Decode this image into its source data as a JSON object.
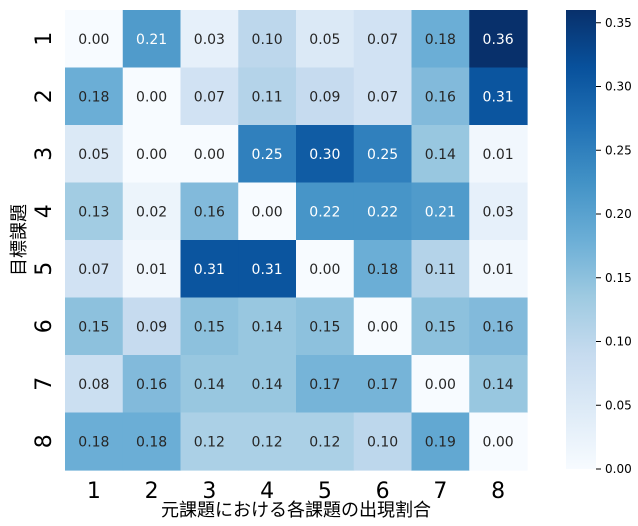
{
  "chart_data": {
    "type": "heatmap",
    "xlabel": "元課題における各課題の出現割合",
    "ylabel": "目標課題",
    "x_categories": [
      "1",
      "2",
      "3",
      "4",
      "5",
      "6",
      "7",
      "8"
    ],
    "y_categories": [
      "1",
      "2",
      "3",
      "4",
      "5",
      "6",
      "7",
      "8"
    ],
    "values": [
      [
        0.0,
        0.21,
        0.03,
        0.1,
        0.05,
        0.07,
        0.18,
        0.36
      ],
      [
        0.18,
        0.0,
        0.07,
        0.11,
        0.09,
        0.07,
        0.16,
        0.31
      ],
      [
        0.05,
        0.0,
        0.0,
        0.25,
        0.3,
        0.25,
        0.14,
        0.01
      ],
      [
        0.13,
        0.02,
        0.16,
        0.0,
        0.22,
        0.22,
        0.21,
        0.03
      ],
      [
        0.07,
        0.01,
        0.31,
        0.31,
        0.0,
        0.18,
        0.11,
        0.01
      ],
      [
        0.15,
        0.09,
        0.15,
        0.14,
        0.15,
        0.0,
        0.15,
        0.16
      ],
      [
        0.08,
        0.16,
        0.14,
        0.14,
        0.17,
        0.17,
        0.0,
        0.14
      ],
      [
        0.18,
        0.18,
        0.12,
        0.12,
        0.12,
        0.1,
        0.19,
        0.0
      ]
    ],
    "colormap": "Blues",
    "vmin": 0.0,
    "vmax": 0.36,
    "colorbar_ticks": [
      "0.00",
      "0.05",
      "0.10",
      "0.15",
      "0.20",
      "0.25",
      "0.30",
      "0.35"
    ],
    "colorbar_tick_values": [
      0.0,
      0.05,
      0.1,
      0.15,
      0.2,
      0.25,
      0.3,
      0.35
    ]
  }
}
